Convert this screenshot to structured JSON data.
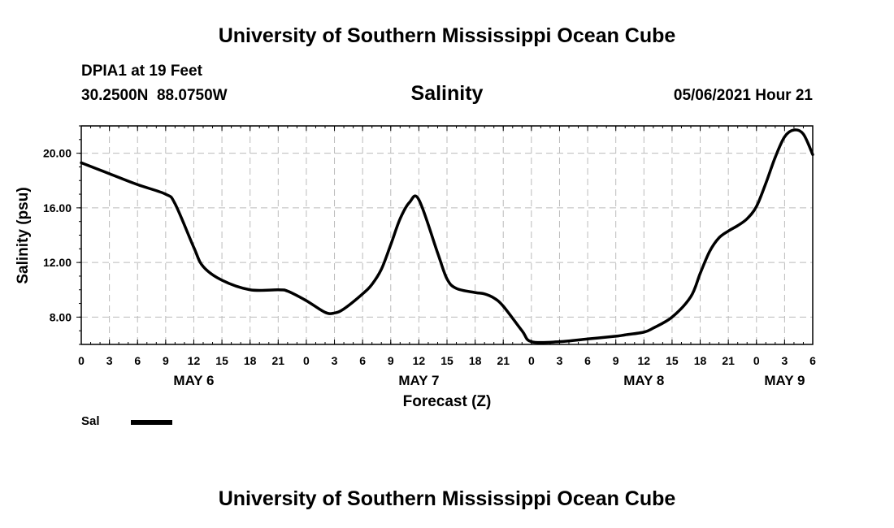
{
  "header": {
    "title": "University of Southern Mississippi Ocean Cube",
    "station": "DPIA1 at 19 Feet",
    "coords": "30.2500N  88.0750W",
    "subtitle": "Salinity",
    "datetime": "05/06/2021 Hour 21"
  },
  "footer": {
    "title": "University of Southern Mississippi Ocean Cube"
  },
  "legend": {
    "label": "Sal",
    "color": "#000000"
  },
  "chart_data": {
    "type": "line",
    "ylabel": "Salinity (psu)",
    "xlabel": "Forecast (Z)",
    "x_unit": "forecast hours from May 6 00Z",
    "xlim": [
      0,
      78
    ],
    "ylim": [
      6.0,
      22.0
    ],
    "y_ticks": [
      8.0,
      12.0,
      16.0,
      20.0
    ],
    "y_tick_labels": [
      "8.00",
      "12.00",
      "16.00",
      "20.00"
    ],
    "x_ticks": [
      0,
      3,
      6,
      9,
      12,
      15,
      18,
      21,
      24,
      27,
      30,
      33,
      36,
      39,
      42,
      45,
      48,
      51,
      54,
      57,
      60,
      63,
      66,
      69,
      72,
      75,
      78
    ],
    "x_tick_labels": [
      "0",
      "3",
      "6",
      "9",
      "12",
      "15",
      "18",
      "21",
      "0",
      "3",
      "6",
      "9",
      "12",
      "15",
      "18",
      "21",
      "0",
      "3",
      "6",
      "9",
      "12",
      "15",
      "18",
      "21",
      "0",
      "3",
      "6"
    ],
    "date_labels": [
      {
        "label": "MAY 6",
        "x": 12
      },
      {
        "label": "MAY 7",
        "x": 36
      },
      {
        "label": "MAY 8",
        "x": 60
      },
      {
        "label": "MAY 9",
        "x": 75
      }
    ],
    "grid": true,
    "series": [
      {
        "name": "Sal",
        "color": "#000000",
        "x": [
          0,
          3,
          6,
          9,
          10,
          12,
          13,
          15,
          18,
          21,
          22,
          24,
          26,
          27,
          28,
          30,
          31,
          32,
          33,
          34,
          35,
          36,
          38,
          39,
          40,
          42,
          43,
          44,
          45,
          47,
          48,
          51,
          54,
          57,
          58,
          60,
          61,
          63,
          65,
          66,
          67,
          68,
          69,
          70,
          71,
          72,
          73,
          74,
          75,
          76,
          77,
          78
        ],
        "y": [
          19.3,
          18.5,
          17.7,
          17.0,
          16.3,
          13.1,
          11.7,
          10.7,
          10.0,
          10.0,
          9.9,
          9.2,
          8.35,
          8.3,
          8.6,
          9.7,
          10.4,
          11.5,
          13.3,
          15.2,
          16.4,
          16.6,
          12.7,
          10.8,
          10.1,
          9.8,
          9.7,
          9.4,
          8.8,
          7.0,
          6.2,
          6.2,
          6.4,
          6.6,
          6.7,
          6.9,
          7.2,
          8.0,
          9.5,
          11.2,
          12.8,
          13.8,
          14.3,
          14.7,
          15.2,
          16.1,
          17.8,
          19.7,
          21.2,
          21.7,
          21.4,
          19.9
        ]
      }
    ]
  }
}
